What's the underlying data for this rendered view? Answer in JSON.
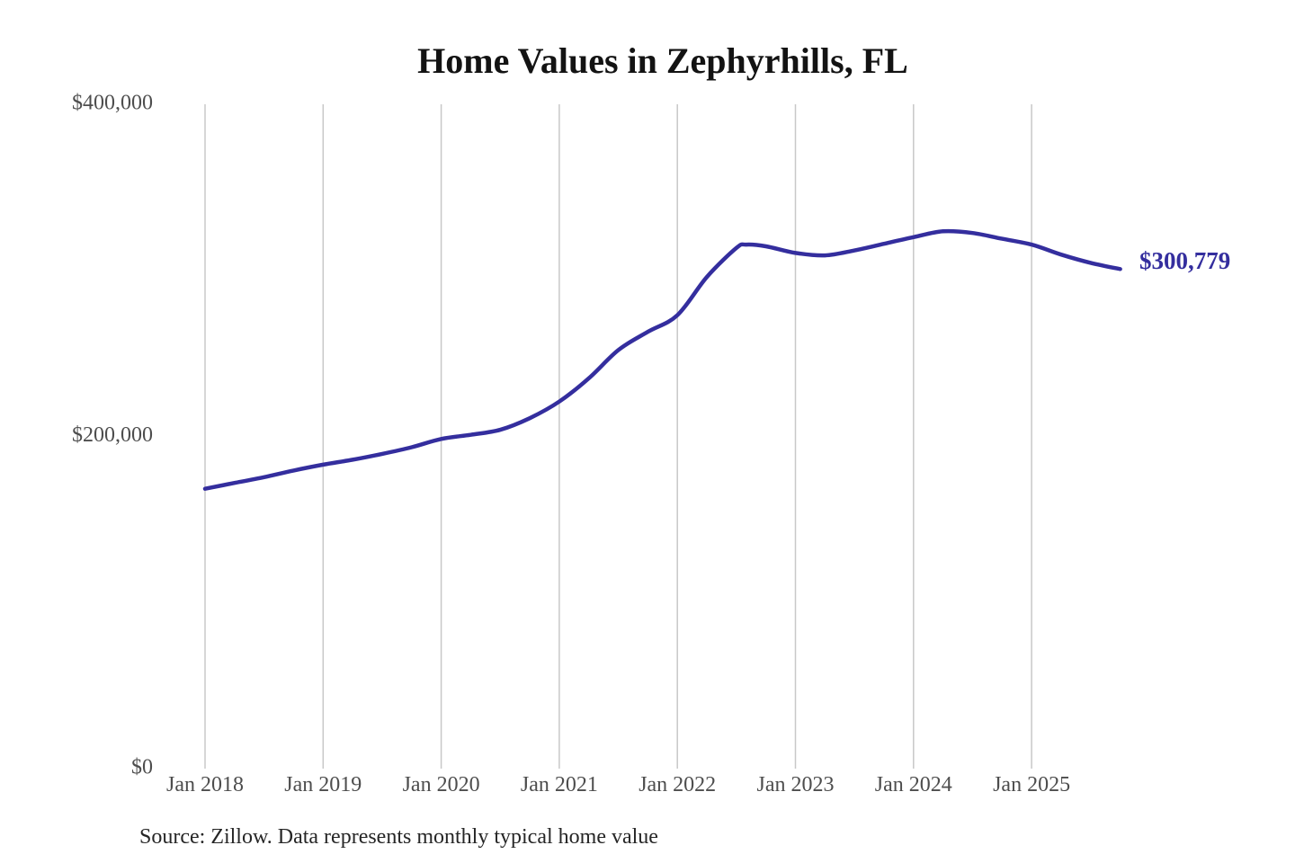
{
  "page": {
    "background_color": "#ffffff"
  },
  "chart_data": {
    "type": "line",
    "title": "Home Values in Zephyrhills, FL",
    "source_note": "Source: Zillow. Data represents monthly typical home value",
    "end_label": "$300,779",
    "final_value": 300779,
    "line_color": "#342e9e",
    "grid_color": "#c8c8c8",
    "tick_text_color": "#4d4d4d",
    "title_color": "#131313",
    "grid": "vertical-only",
    "legend": "none",
    "xlabel": "",
    "ylabel": "",
    "y_axis_range": [
      0,
      400000
    ],
    "y_ticks": [
      {
        "label": "$0",
        "value": 0
      },
      {
        "label": "$200,000",
        "value": 200000
      },
      {
        "label": "$400,000",
        "value": 400000
      }
    ],
    "x_tick_labels": [
      "Jan 2018",
      "Jan 2019",
      "Jan 2020",
      "Jan 2021",
      "Jan 2022",
      "Jan 2023",
      "Jan 2024",
      "Jan 2025"
    ],
    "series": [
      {
        "name": "Typical home value",
        "points": [
          [
            "2018-01",
            168500
          ],
          [
            "2018-04",
            172000
          ],
          [
            "2018-07",
            175500
          ],
          [
            "2018-10",
            179500
          ],
          [
            "2019-01",
            183000
          ],
          [
            "2019-04",
            186000
          ],
          [
            "2019-07",
            189500
          ],
          [
            "2019-10",
            193500
          ],
          [
            "2020-01",
            198500
          ],
          [
            "2020-04",
            201000
          ],
          [
            "2020-07",
            204000
          ],
          [
            "2020-10",
            211000
          ],
          [
            "2021-01",
            221000
          ],
          [
            "2021-04",
            235000
          ],
          [
            "2021-07",
            252000
          ],
          [
            "2021-10",
            263000
          ],
          [
            "2022-01",
            273000
          ],
          [
            "2022-04",
            296000
          ],
          [
            "2022-07",
            313500
          ],
          [
            "2022-08",
            315500
          ],
          [
            "2022-10",
            314500
          ],
          [
            "2023-01",
            310500
          ],
          [
            "2023-04",
            309000
          ],
          [
            "2023-07",
            312000
          ],
          [
            "2023-10",
            316000
          ],
          [
            "2024-01",
            320000
          ],
          [
            "2024-04",
            323500
          ],
          [
            "2024-07",
            322500
          ],
          [
            "2024-10",
            319000
          ],
          [
            "2025-01",
            315500
          ],
          [
            "2025-04",
            309500
          ],
          [
            "2025-07",
            304500
          ],
          [
            "2025-10",
            300779
          ]
        ]
      }
    ]
  }
}
